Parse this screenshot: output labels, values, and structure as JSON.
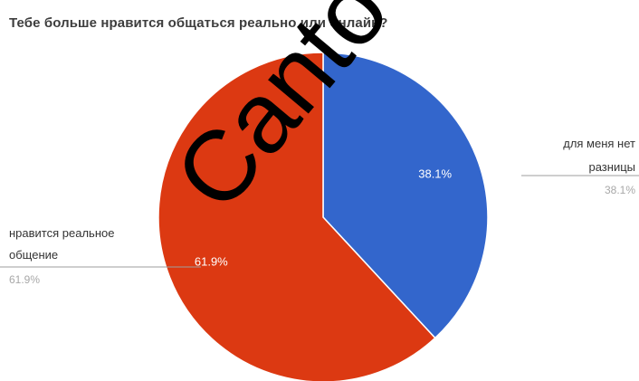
{
  "chart_data": {
    "type": "pie",
    "title": "Тебе больше нравится общаться реально или онлайн?",
    "slices": [
      {
        "label_lines": [
          "для меня нет",
          "разницы"
        ],
        "value": 38.1,
        "value_text": "38.1%",
        "color": "#3366cc"
      },
      {
        "label_lines": [
          "нравится реальное",
          "общение"
        ],
        "value": 61.9,
        "value_text": "61.9%",
        "color": "#dc3912"
      }
    ],
    "legend": "labeled callouts",
    "start_angle": "12 o'clock, clockwise"
  },
  "watermark": {
    "text": "Cantov Univ",
    "color": "#000000"
  }
}
